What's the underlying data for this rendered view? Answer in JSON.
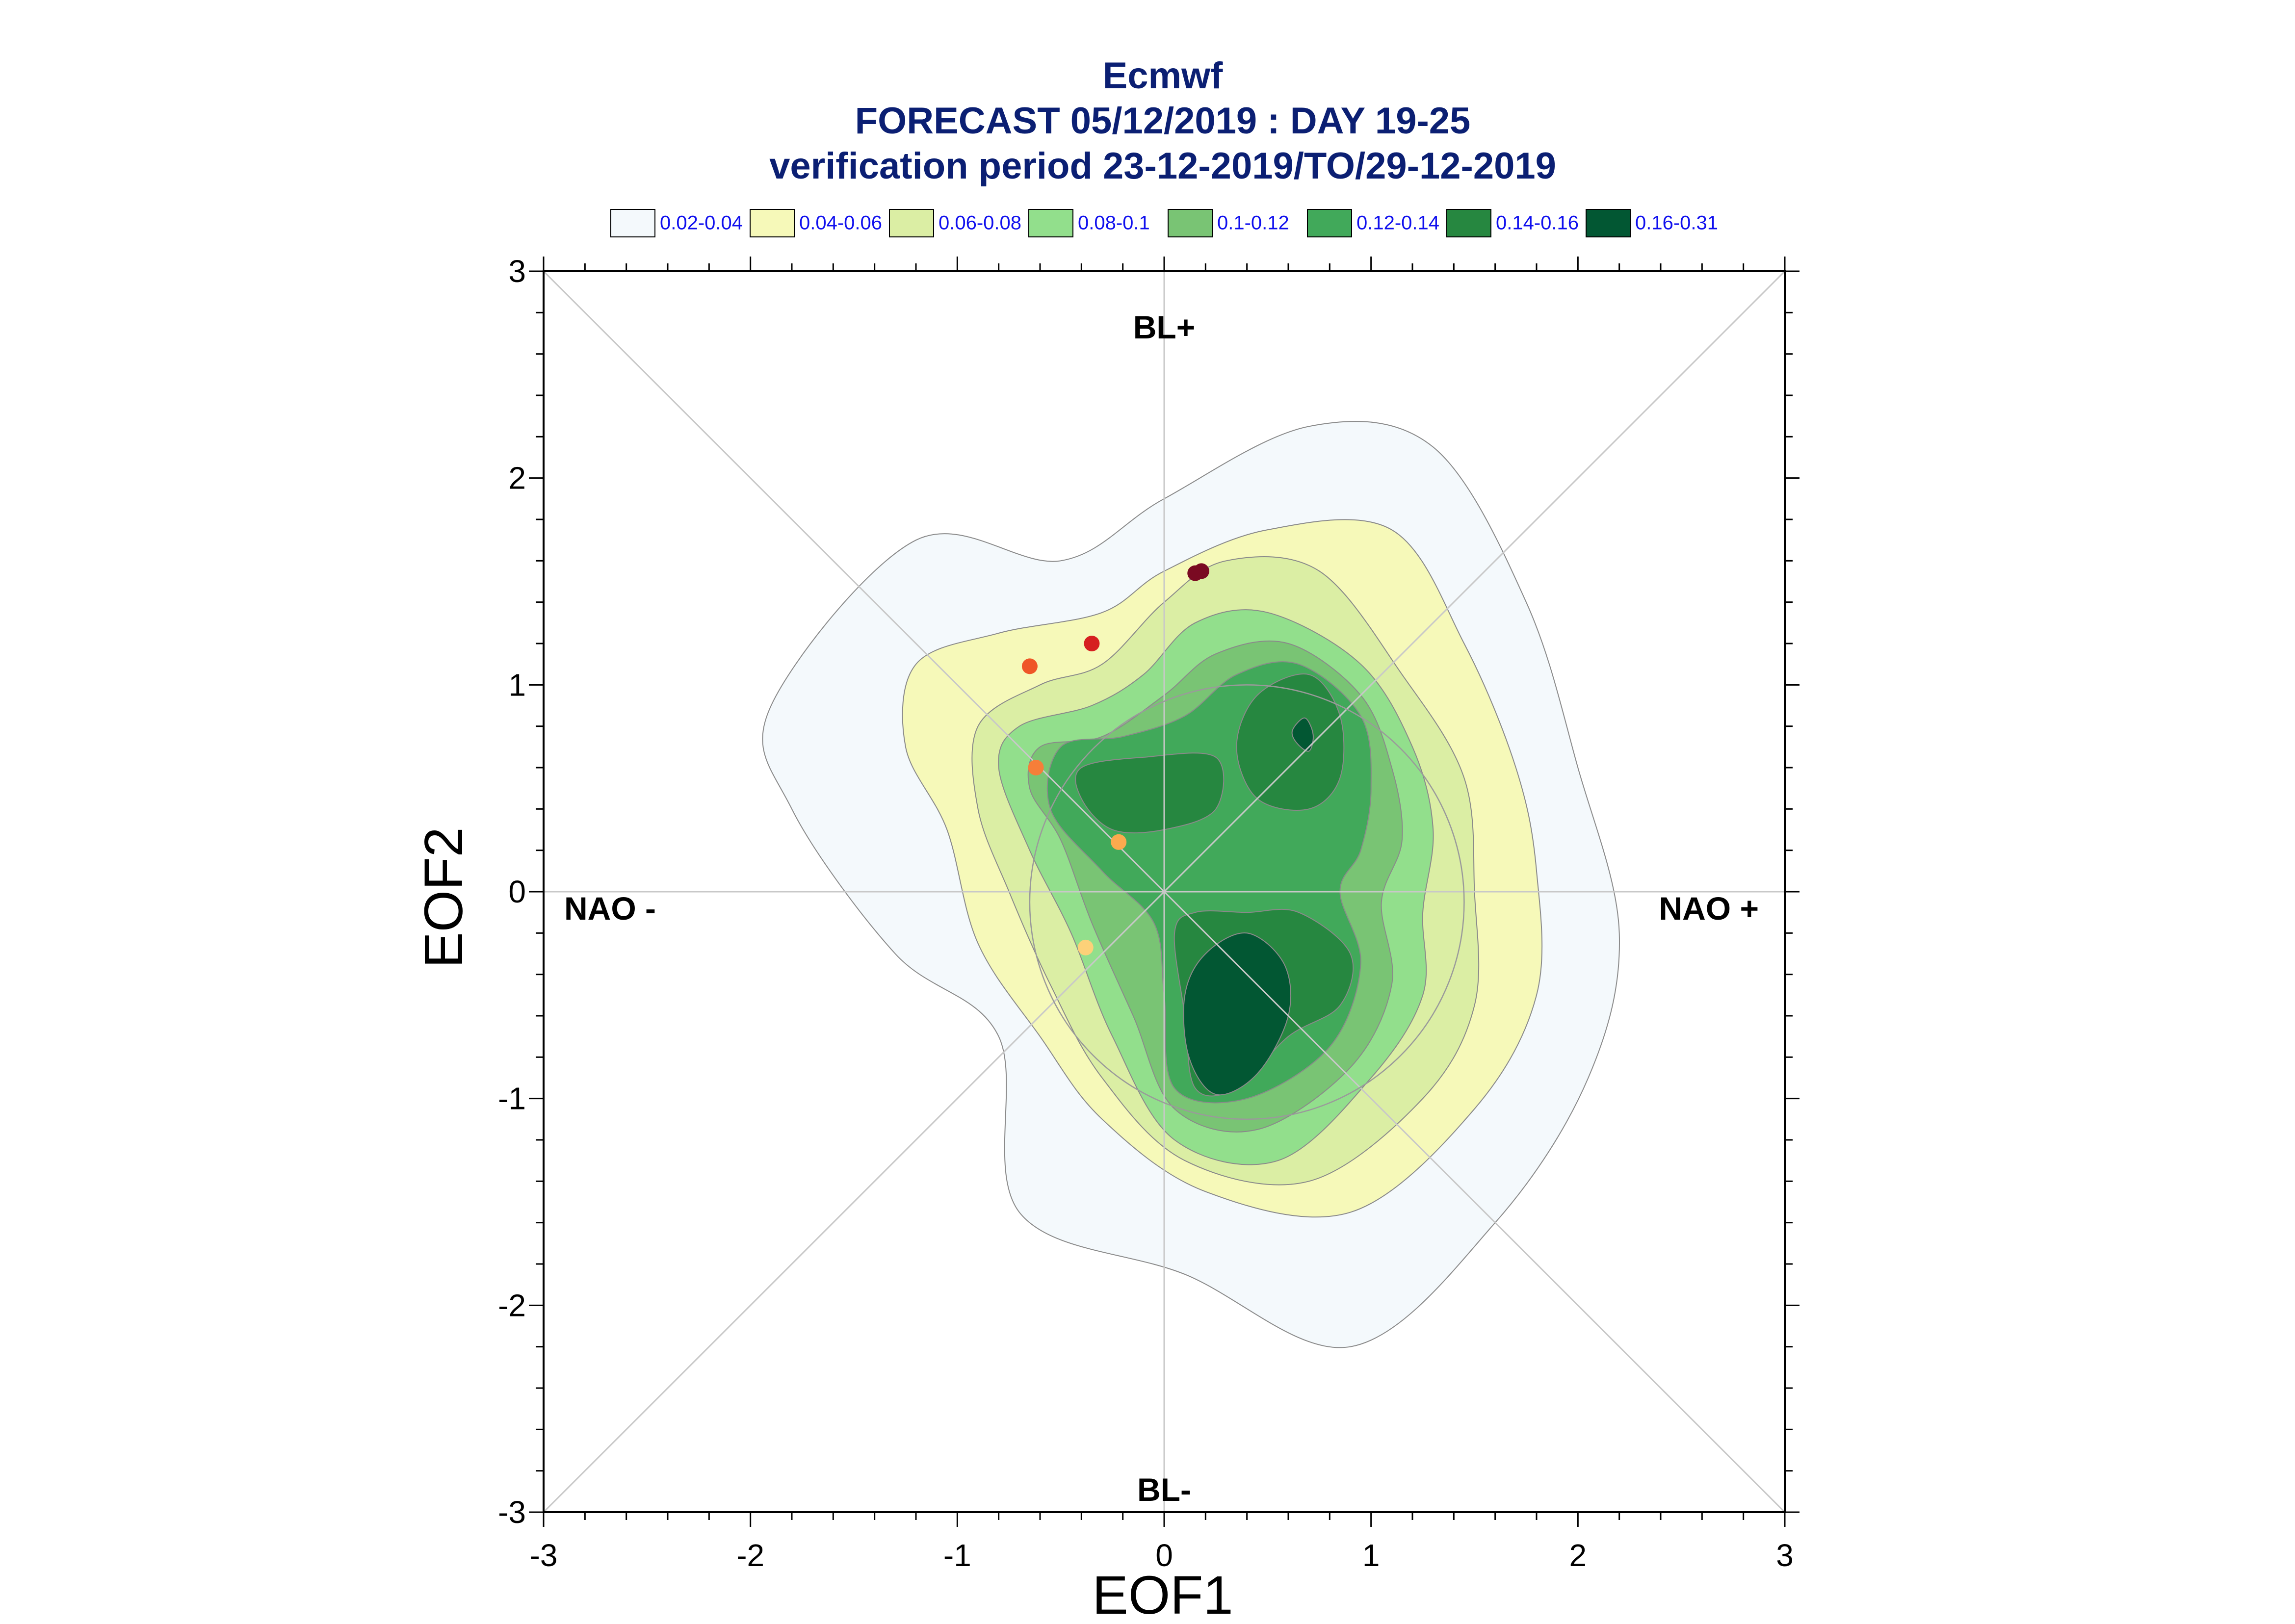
{
  "chart_data": {
    "type": "contour",
    "title_lines": [
      "Ecmwf",
      "FORECAST 05/12/2019 : DAY 19-25",
      "verification period 23-12-2019/TO/29-12-2019"
    ],
    "xlabel": "EOF1",
    "ylabel": "EOF2",
    "xlim": [
      -3,
      3
    ],
    "ylim": [
      -3,
      3
    ],
    "x_ticks": [
      "-3",
      "-2",
      "-1",
      "0",
      "1",
      "2",
      "3"
    ],
    "y_ticks": [
      "-3",
      "-2",
      "-1",
      "0",
      "1",
      "2",
      "3"
    ],
    "region_labels": {
      "top": "BL+",
      "bottom": "BL-",
      "left": "NAO -",
      "right": "NAO +"
    },
    "legend": {
      "placement": "top",
      "entries": [
        {
          "label": "0.02-0.04",
          "color": "#f4f9fc"
        },
        {
          "label": "0.04-0.06",
          "color": "#f6f9b9"
        },
        {
          "label": "0.06-0.08",
          "color": "#dbeea4"
        },
        {
          "label": "0.08-0.1",
          "color": "#92df8c"
        },
        {
          "label": "0.1-0.12",
          "color": "#79c474"
        },
        {
          "label": "0.12-0.14",
          "color": "#41a95a"
        },
        {
          "label": "0.14-0.16",
          "color": "#268740"
        },
        {
          "label": "0.16-0.31",
          "color": "#025733"
        }
      ]
    },
    "density_levels": [
      {
        "range": "0.02-0.04",
        "color": "#f4f9fc",
        "regions": [
          [
            [
              -1.2,
              1.7
            ],
            [
              -0.5,
              1.6
            ],
            [
              0,
              1.9
            ],
            [
              0.7,
              2.25
            ],
            [
              1.3,
              2.15
            ],
            [
              1.75,
              1.4
            ],
            [
              2,
              0.6
            ],
            [
              2.2,
              -0.2
            ],
            [
              2.05,
              -0.9
            ],
            [
              1.6,
              -1.6
            ],
            [
              0.9,
              -2.2
            ],
            [
              0.1,
              -1.85
            ],
            [
              -0.7,
              -1.55
            ],
            [
              -0.8,
              -0.7
            ],
            [
              -1.3,
              -0.3
            ],
            [
              -1.8,
              0.4
            ],
            [
              -1.9,
              0.9
            ]
          ]
        ]
      },
      {
        "range": "0.04-0.06",
        "color": "#f6f9b9",
        "regions": [
          [
            [
              -1.2,
              1.1
            ],
            [
              -0.8,
              1.25
            ],
            [
              -0.3,
              1.35
            ],
            [
              0,
              1.55
            ],
            [
              0.5,
              1.75
            ],
            [
              1.1,
              1.75
            ],
            [
              1.45,
              1.2
            ],
            [
              1.7,
              0.6
            ],
            [
              1.8,
              0.1
            ],
            [
              1.8,
              -0.5
            ],
            [
              1.5,
              -1.05
            ],
            [
              0.9,
              -1.55
            ],
            [
              0.2,
              -1.45
            ],
            [
              -0.3,
              -1.1
            ],
            [
              -0.6,
              -0.7
            ],
            [
              -0.9,
              -0.25
            ],
            [
              -1.05,
              0.3
            ],
            [
              -1.25,
              0.7
            ]
          ]
        ]
      },
      {
        "range": "0.06-0.08",
        "color": "#dbeea4",
        "regions": [
          [
            [
              -0.9,
              0.8
            ],
            [
              -0.6,
              1.0
            ],
            [
              -0.3,
              1.1
            ],
            [
              0,
              1.4
            ],
            [
              0.3,
              1.6
            ],
            [
              0.75,
              1.55
            ],
            [
              1.15,
              1.05
            ],
            [
              1.45,
              0.55
            ],
            [
              1.5,
              0.0
            ],
            [
              1.5,
              -0.55
            ],
            [
              1.25,
              -1.0
            ],
            [
              0.7,
              -1.4
            ],
            [
              0.1,
              -1.3
            ],
            [
              -0.3,
              -0.9
            ],
            [
              -0.55,
              -0.45
            ],
            [
              -0.75,
              0.0
            ],
            [
              -0.9,
              0.4
            ]
          ]
        ]
      },
      {
        "range": "0.08-0.1",
        "color": "#92df8c",
        "regions": [
          [
            [
              -0.7,
              0.8
            ],
            [
              -0.35,
              0.9
            ],
            [
              -0.1,
              1.05
            ],
            [
              0.15,
              1.3
            ],
            [
              0.5,
              1.35
            ],
            [
              0.95,
              1.1
            ],
            [
              1.2,
              0.7
            ],
            [
              1.3,
              0.3
            ],
            [
              1.25,
              -0.1
            ],
            [
              1.25,
              -0.5
            ],
            [
              1.0,
              -0.9
            ],
            [
              0.55,
              -1.3
            ],
            [
              0.05,
              -1.2
            ],
            [
              -0.25,
              -0.7
            ],
            [
              -0.45,
              -0.2
            ],
            [
              -0.65,
              0.2
            ],
            [
              -0.8,
              0.6
            ]
          ]
        ]
      },
      {
        "range": "0.1-0.12",
        "color": "#79c474",
        "regions": [
          [
            [
              -0.6,
              0.7
            ],
            [
              -0.3,
              0.75
            ],
            [
              0,
              0.95
            ],
            [
              0.25,
              1.15
            ],
            [
              0.6,
              1.2
            ],
            [
              0.95,
              0.95
            ],
            [
              1.1,
              0.6
            ],
            [
              1.15,
              0.25
            ],
            [
              1.05,
              -0.05
            ],
            [
              1.1,
              -0.45
            ],
            [
              0.9,
              -0.85
            ],
            [
              0.45,
              -1.15
            ],
            [
              0.05,
              -1.05
            ],
            [
              -0.15,
              -0.6
            ],
            [
              -0.35,
              -0.15
            ],
            [
              -0.5,
              0.25
            ],
            [
              -0.65,
              0.5
            ]
          ]
        ]
      },
      {
        "range": "0.12-0.14",
        "color": "#41a95a",
        "regions": [
          [
            [
              -0.5,
              0.7
            ],
            [
              -0.2,
              0.75
            ],
            [
              0.1,
              0.85
            ],
            [
              0.35,
              1.05
            ],
            [
              0.65,
              1.1
            ],
            [
              0.95,
              0.85
            ],
            [
              1.0,
              0.5
            ],
            [
              0.95,
              0.2
            ],
            [
              0.85,
              0.0
            ],
            [
              0.95,
              -0.35
            ],
            [
              0.8,
              -0.75
            ],
            [
              0.4,
              -1.0
            ],
            [
              0.05,
              -0.95
            ],
            [
              0,
              -0.5
            ],
            [
              -0.05,
              -0.15
            ],
            [
              -0.3,
              0.1
            ],
            [
              -0.55,
              0.4
            ]
          ]
        ]
      },
      {
        "range": "0.14-0.16",
        "color": "#268740",
        "regions": [
          [
            [
              -0.4,
              0.6
            ],
            [
              -0.1,
              0.65
            ],
            [
              0.25,
              0.65
            ],
            [
              0.25,
              0.4
            ],
            [
              0.0,
              0.3
            ],
            [
              -0.25,
              0.3
            ],
            [
              -0.4,
              0.45
            ]
          ],
          [
            [
              0.35,
              0.7
            ],
            [
              0.45,
              0.95
            ],
            [
              0.7,
              1.05
            ],
            [
              0.85,
              0.85
            ],
            [
              0.85,
              0.55
            ],
            [
              0.7,
              0.4
            ],
            [
              0.45,
              0.45
            ]
          ],
          [
            [
              0.05,
              -0.2
            ],
            [
              0.1,
              -0.6
            ],
            [
              0.15,
              -0.95
            ],
            [
              0.35,
              -0.95
            ],
            [
              0.6,
              -0.7
            ],
            [
              0.85,
              -0.55
            ],
            [
              0.9,
              -0.3
            ],
            [
              0.65,
              -0.1
            ],
            [
              0.4,
              -0.1
            ],
            [
              0.15,
              -0.1
            ]
          ]
        ]
      },
      {
        "range": "0.16-0.31",
        "color": "#025733",
        "regions": [
          [
            [
              0.62,
              0.78
            ],
            [
              0.68,
              0.84
            ],
            [
              0.72,
              0.76
            ],
            [
              0.7,
              0.68
            ],
            [
              0.64,
              0.72
            ]
          ],
          [
            [
              0.1,
              -0.5
            ],
            [
              0.12,
              -0.8
            ],
            [
              0.25,
              -0.98
            ],
            [
              0.45,
              -0.88
            ],
            [
              0.6,
              -0.6
            ],
            [
              0.58,
              -0.35
            ],
            [
              0.4,
              -0.2
            ],
            [
              0.2,
              -0.3
            ]
          ]
        ]
      }
    ],
    "points": [
      {
        "x": 0.15,
        "y": 1.54,
        "color": "#7a0a22"
      },
      {
        "x": 0.18,
        "y": 1.55,
        "color": "#7a0a22"
      },
      {
        "x": -0.35,
        "y": 1.2,
        "color": "#d62020"
      },
      {
        "x": -0.65,
        "y": 1.09,
        "color": "#ef5628"
      },
      {
        "x": -0.62,
        "y": 0.6,
        "color": "#f67e39"
      },
      {
        "x": -0.22,
        "y": 0.24,
        "color": "#fbaa4e"
      },
      {
        "x": -0.38,
        "y": -0.27,
        "color": "#fdd179"
      }
    ],
    "reference_circle": {
      "cx": 0.4,
      "cy": -0.05,
      "r": 1.05
    },
    "grid": false,
    "diagonals": true,
    "colors": {
      "title": "#0b1f73",
      "legend_text": "#1010ee",
      "reference_lines": "#c8c8c8",
      "contour_edges": "#8a8a8a"
    }
  }
}
